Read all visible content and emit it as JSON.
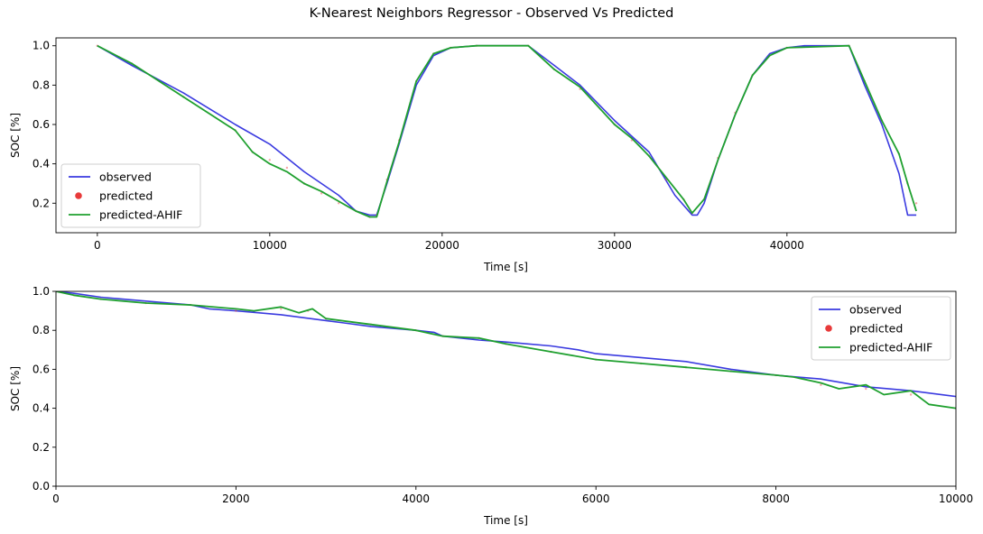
{
  "figure": {
    "suptitle": "K-Nearest Neighbors Regressor - Observed Vs Predicted"
  },
  "colors": {
    "observed": "#3a3ae0",
    "predicted": "#e83a3a",
    "ahif": "#1fa02f"
  },
  "chart_data": [
    {
      "type": "line",
      "xlabel": "Time [s]",
      "ylabel": "SOC [%]",
      "xlim": [
        -2400,
        49800
      ],
      "ylim": [
        0.05,
        1.04
      ],
      "xticks": [
        0,
        10000,
        20000,
        30000,
        40000
      ],
      "xtick_labels": [
        "0",
        "10000",
        "20000",
        "30000",
        "40000"
      ],
      "yticks": [
        0.2,
        0.4,
        0.6,
        0.8,
        1.0
      ],
      "ytick_labels": [
        "0.2",
        "0.4",
        "0.6",
        "0.8",
        "1.0"
      ],
      "legend_position": "lower-left",
      "series": [
        {
          "name": "observed",
          "style": "line",
          "x": [
            0,
            2000,
            5000,
            8000,
            10000,
            12000,
            14000,
            15000,
            15800,
            16200,
            16800,
            17500,
            18500,
            19500,
            20500,
            22000,
            25000,
            26500,
            28000,
            30000,
            32000,
            33500,
            34500,
            34800,
            35200,
            36000,
            37000,
            38000,
            39000,
            40000,
            41000,
            43600,
            44500,
            45500,
            46500,
            47000,
            47500
          ],
          "y": [
            1.0,
            0.9,
            0.76,
            0.6,
            0.5,
            0.36,
            0.24,
            0.16,
            0.14,
            0.14,
            0.3,
            0.5,
            0.8,
            0.95,
            0.99,
            1.0,
            1.0,
            0.9,
            0.8,
            0.62,
            0.46,
            0.24,
            0.14,
            0.14,
            0.2,
            0.42,
            0.65,
            0.85,
            0.96,
            0.99,
            1.0,
            1.0,
            0.8,
            0.6,
            0.35,
            0.14,
            0.14
          ]
        },
        {
          "name": "predicted",
          "style": "scatter",
          "x": [
            0,
            2000,
            5000,
            8000,
            9000,
            10000,
            11000,
            12000,
            13000,
            14000,
            15000,
            15800,
            16200,
            16800,
            17500,
            18500,
            19500,
            20500,
            22000,
            25000,
            26500,
            28000,
            30000,
            31000,
            32000,
            33000,
            34000,
            34500,
            35200,
            36000,
            37000,
            38000,
            39000,
            40000,
            43600,
            44500,
            45500,
            46500,
            47000,
            47500
          ],
          "y": [
            1.0,
            0.91,
            0.74,
            0.57,
            0.46,
            0.42,
            0.38,
            0.3,
            0.25,
            0.2,
            0.16,
            0.13,
            0.14,
            0.32,
            0.52,
            0.82,
            0.96,
            0.99,
            1.0,
            1.0,
            0.88,
            0.78,
            0.6,
            0.52,
            0.44,
            0.32,
            0.22,
            0.15,
            0.22,
            0.43,
            0.66,
            0.85,
            0.95,
            0.99,
            1.0,
            0.82,
            0.62,
            0.45,
            0.3,
            0.2
          ]
        },
        {
          "name": "predicted-AHIF",
          "style": "line",
          "x": [
            0,
            2000,
            5000,
            8000,
            9000,
            10000,
            11000,
            12000,
            13000,
            14000,
            15000,
            15800,
            16200,
            16800,
            17500,
            18500,
            19500,
            20500,
            22000,
            25000,
            26500,
            28000,
            30000,
            31000,
            32000,
            33000,
            34000,
            34500,
            35200,
            36000,
            37000,
            38000,
            39000,
            40000,
            43600,
            44500,
            45500,
            46500,
            47000,
            47500
          ],
          "y": [
            1.0,
            0.91,
            0.74,
            0.57,
            0.46,
            0.4,
            0.36,
            0.3,
            0.26,
            0.21,
            0.16,
            0.13,
            0.13,
            0.31,
            0.51,
            0.82,
            0.96,
            0.99,
            1.0,
            1.0,
            0.88,
            0.79,
            0.6,
            0.53,
            0.44,
            0.33,
            0.22,
            0.15,
            0.22,
            0.42,
            0.65,
            0.85,
            0.95,
            0.99,
            1.0,
            0.82,
            0.62,
            0.45,
            0.3,
            0.16
          ]
        }
      ]
    },
    {
      "type": "line",
      "xlabel": "Time [s]",
      "ylabel": "SOC [%]",
      "xlim": [
        0,
        10000
      ],
      "ylim": [
        0.0,
        1.0
      ],
      "xticks": [
        0,
        2000,
        4000,
        6000,
        8000,
        10000
      ],
      "xtick_labels": [
        "0",
        "2000",
        "4000",
        "6000",
        "8000",
        "10000"
      ],
      "yticks": [
        0.0,
        0.2,
        0.4,
        0.6,
        0.8,
        1.0
      ],
      "ytick_labels": [
        "0.0",
        "0.2",
        "0.4",
        "0.6",
        "0.8",
        "1.0"
      ],
      "legend_position": "upper-right",
      "series": [
        {
          "name": "observed",
          "style": "line",
          "x": [
            0,
            200,
            500,
            1000,
            1500,
            1700,
            2000,
            2500,
            3000,
            3500,
            4000,
            4200,
            4300,
            4700,
            5000,
            5500,
            5800,
            6000,
            6500,
            7000,
            7500,
            8000,
            8500,
            9000,
            9500,
            10000
          ],
          "y": [
            1.0,
            0.99,
            0.97,
            0.95,
            0.93,
            0.91,
            0.9,
            0.88,
            0.85,
            0.82,
            0.8,
            0.79,
            0.77,
            0.75,
            0.74,
            0.72,
            0.7,
            0.68,
            0.66,
            0.64,
            0.6,
            0.57,
            0.55,
            0.51,
            0.49,
            0.46
          ]
        },
        {
          "name": "predicted",
          "style": "scatter",
          "x": [
            0,
            200,
            500,
            1000,
            1500,
            2000,
            2500,
            2800,
            3000,
            3500,
            4000,
            4300,
            4700,
            5000,
            5500,
            6000,
            6500,
            7000,
            7500,
            8000,
            8500,
            9000,
            9500,
            10000
          ],
          "y": [
            1.0,
            0.98,
            0.96,
            0.94,
            0.93,
            0.9,
            0.91,
            0.9,
            0.86,
            0.83,
            0.8,
            0.77,
            0.76,
            0.73,
            0.69,
            0.65,
            0.63,
            0.61,
            0.59,
            0.57,
            0.52,
            0.5,
            0.47,
            0.4
          ]
        },
        {
          "name": "predicted-AHIF",
          "style": "line",
          "x": [
            0,
            200,
            500,
            1000,
            1500,
            2000,
            2200,
            2500,
            2700,
            2850,
            3000,
            3500,
            4000,
            4300,
            4700,
            5000,
            5500,
            6000,
            6500,
            7000,
            7500,
            8000,
            8200,
            8500,
            8700,
            9000,
            9200,
            9500,
            9700,
            10000
          ],
          "y": [
            1.0,
            0.98,
            0.96,
            0.94,
            0.93,
            0.91,
            0.9,
            0.92,
            0.89,
            0.91,
            0.86,
            0.83,
            0.8,
            0.77,
            0.76,
            0.73,
            0.69,
            0.65,
            0.63,
            0.61,
            0.59,
            0.57,
            0.56,
            0.53,
            0.5,
            0.52,
            0.47,
            0.49,
            0.42,
            0.4
          ]
        }
      ]
    }
  ]
}
